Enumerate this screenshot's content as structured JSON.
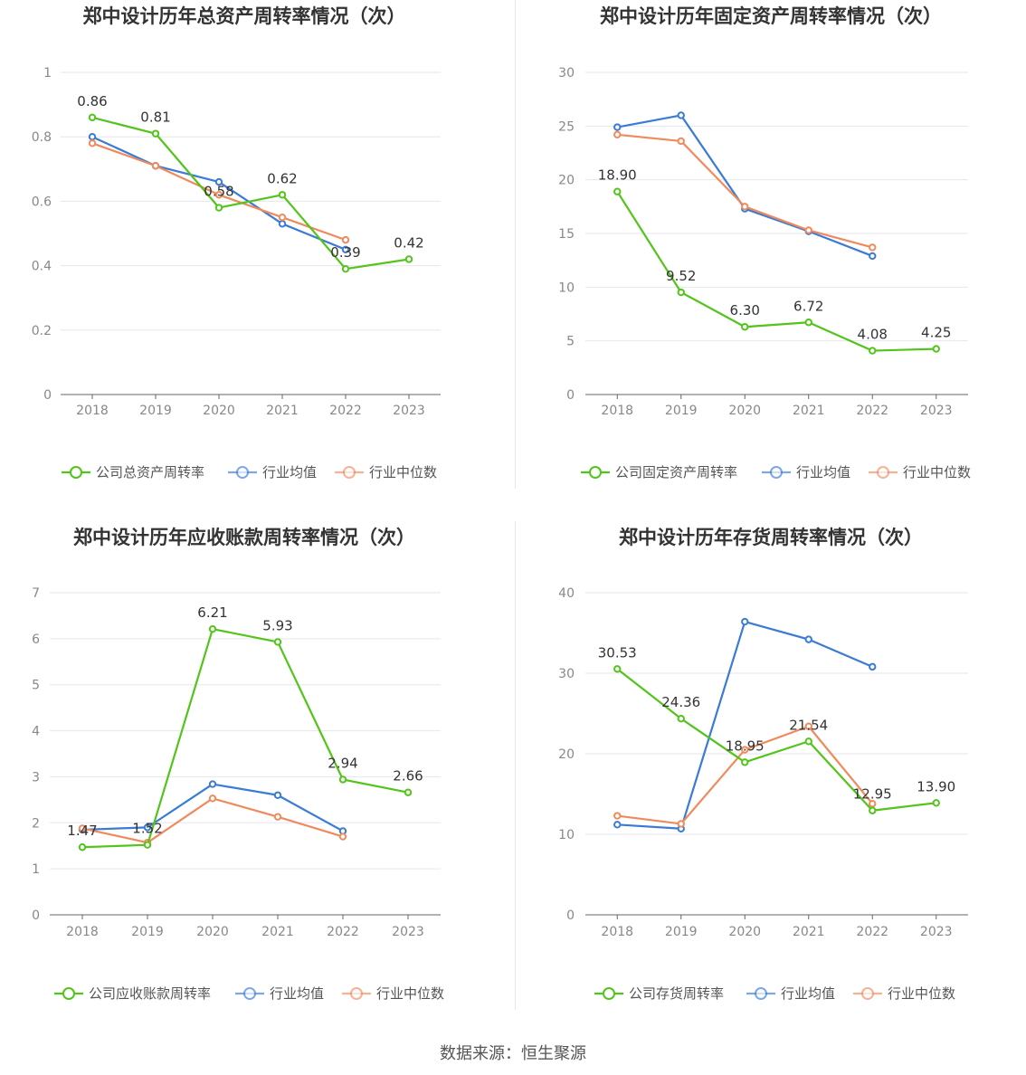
{
  "source": "数据来源：恒生聚源",
  "colors": {
    "company": "#52c41a",
    "avg": "#3a7bd5",
    "median": "#f08a5d"
  },
  "chart_data": [
    {
      "type": "line",
      "title": "郑中设计历年总资产周转率情况（次）",
      "categories": [
        "2018",
        "2019",
        "2020",
        "2021",
        "2022",
        "2023"
      ],
      "ylim": [
        0,
        1
      ],
      "yticks": [
        0,
        0.2,
        0.4,
        0.6,
        0.8,
        1
      ],
      "ytick_labels": [
        "0",
        "0.2",
        "0.4",
        "0.6",
        "0.8",
        "1"
      ],
      "grid": true,
      "legend": "bottom",
      "series": [
        {
          "name": "公司总资产周转率",
          "key": "company",
          "values": [
            0.86,
            0.81,
            0.58,
            0.62,
            0.39,
            0.42
          ],
          "labels": [
            "0.86",
            "0.81",
            "0.58",
            "0.62",
            "0.39",
            "0.42"
          ]
        },
        {
          "name": "行业均值",
          "key": "avg",
          "values": [
            0.8,
            0.71,
            0.66,
            0.53,
            0.45,
            null
          ]
        },
        {
          "name": "行业中位数",
          "key": "median",
          "values": [
            0.78,
            0.71,
            0.62,
            0.55,
            0.48,
            null
          ]
        }
      ]
    },
    {
      "type": "line",
      "title": "郑中设计历年固定资产周转率情况（次）",
      "categories": [
        "2018",
        "2019",
        "2020",
        "2021",
        "2022",
        "2023"
      ],
      "ylim": [
        0,
        30
      ],
      "yticks": [
        0,
        5,
        10,
        15,
        20,
        25,
        30
      ],
      "ytick_labels": [
        "0",
        "5",
        "10",
        "15",
        "20",
        "25",
        "30"
      ],
      "grid": true,
      "legend": "bottom",
      "series": [
        {
          "name": "公司固定资产周转率",
          "key": "company",
          "values": [
            18.9,
            9.52,
            6.3,
            6.72,
            4.08,
            4.25
          ],
          "labels": [
            "18.90",
            "9.52",
            "6.30",
            "6.72",
            "4.08",
            "4.25"
          ]
        },
        {
          "name": "行业均值",
          "key": "avg",
          "values": [
            24.9,
            26.0,
            17.3,
            15.2,
            12.9,
            null
          ]
        },
        {
          "name": "行业中位数",
          "key": "median",
          "values": [
            24.2,
            23.6,
            17.5,
            15.3,
            13.7,
            null
          ]
        }
      ]
    },
    {
      "type": "line",
      "title": "郑中设计历年应收账款周转率情况（次）",
      "categories": [
        "2018",
        "2019",
        "2020",
        "2021",
        "2022",
        "2023"
      ],
      "ylim": [
        0,
        7
      ],
      "yticks": [
        0,
        1,
        2,
        3,
        4,
        5,
        6,
        7
      ],
      "ytick_labels": [
        "0",
        "1",
        "2",
        "3",
        "4",
        "5",
        "6",
        "7"
      ],
      "grid": true,
      "legend": "bottom",
      "series": [
        {
          "name": "公司应收账款周转率",
          "key": "company",
          "values": [
            1.47,
            1.52,
            6.21,
            5.93,
            2.94,
            2.66
          ],
          "labels": [
            "1.47",
            "1.52",
            "6.21",
            "5.93",
            "2.94",
            "2.66"
          ]
        },
        {
          "name": "行业均值",
          "key": "avg",
          "values": [
            1.85,
            1.9,
            2.84,
            2.6,
            1.82,
            null
          ]
        },
        {
          "name": "行业中位数",
          "key": "median",
          "values": [
            1.88,
            1.57,
            2.53,
            2.13,
            1.7,
            null
          ]
        }
      ]
    },
    {
      "type": "line",
      "title": "郑中设计历年存货周转率情况（次）",
      "categories": [
        "2018",
        "2019",
        "2020",
        "2021",
        "2022",
        "2023"
      ],
      "ylim": [
        0,
        40
      ],
      "yticks": [
        0,
        10,
        20,
        30,
        40
      ],
      "ytick_labels": [
        "0",
        "10",
        "20",
        "30",
        "40"
      ],
      "grid": true,
      "legend": "bottom",
      "series": [
        {
          "name": "公司存货周转率",
          "key": "company",
          "values": [
            30.53,
            24.36,
            18.95,
            21.54,
            12.95,
            13.9
          ],
          "labels": [
            "30.53",
            "24.36",
            "18.95",
            "21.54",
            "12.95",
            "13.90"
          ]
        },
        {
          "name": "行业均值",
          "key": "avg",
          "values": [
            11.2,
            10.7,
            36.4,
            34.2,
            30.8,
            null
          ]
        },
        {
          "name": "行业中位数",
          "key": "median",
          "values": [
            12.3,
            11.3,
            20.5,
            23.4,
            13.8,
            null
          ]
        }
      ]
    }
  ]
}
